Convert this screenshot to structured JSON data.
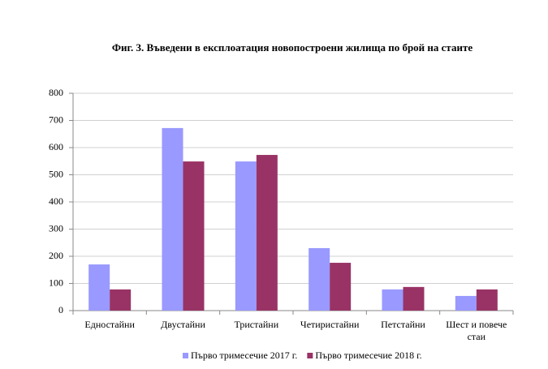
{
  "chart_data": {
    "type": "bar",
    "title": "Фиг. 3. Въведени в експлоатация новопостроени жилища по брой на стаите",
    "categories": [
      "Едностайни",
      "Двустайни",
      "Тристайни",
      "Четиристайни",
      "Петстайни",
      "Шест и повече стаи"
    ],
    "series": [
      {
        "name": "Първо тримесечие 2017 г.",
        "color": "#9999ff",
        "values": [
          170,
          672,
          549,
          230,
          78,
          54
        ]
      },
      {
        "name": "Първо тримесечие 2018 г.",
        "color": "#993366",
        "values": [
          78,
          549,
          573,
          176,
          87,
          78
        ]
      }
    ],
    "ylim": [
      0,
      800
    ],
    "yticks": [
      0,
      100,
      200,
      300,
      400,
      500,
      600,
      700,
      800
    ],
    "grid": true,
    "legend": "bottom"
  }
}
